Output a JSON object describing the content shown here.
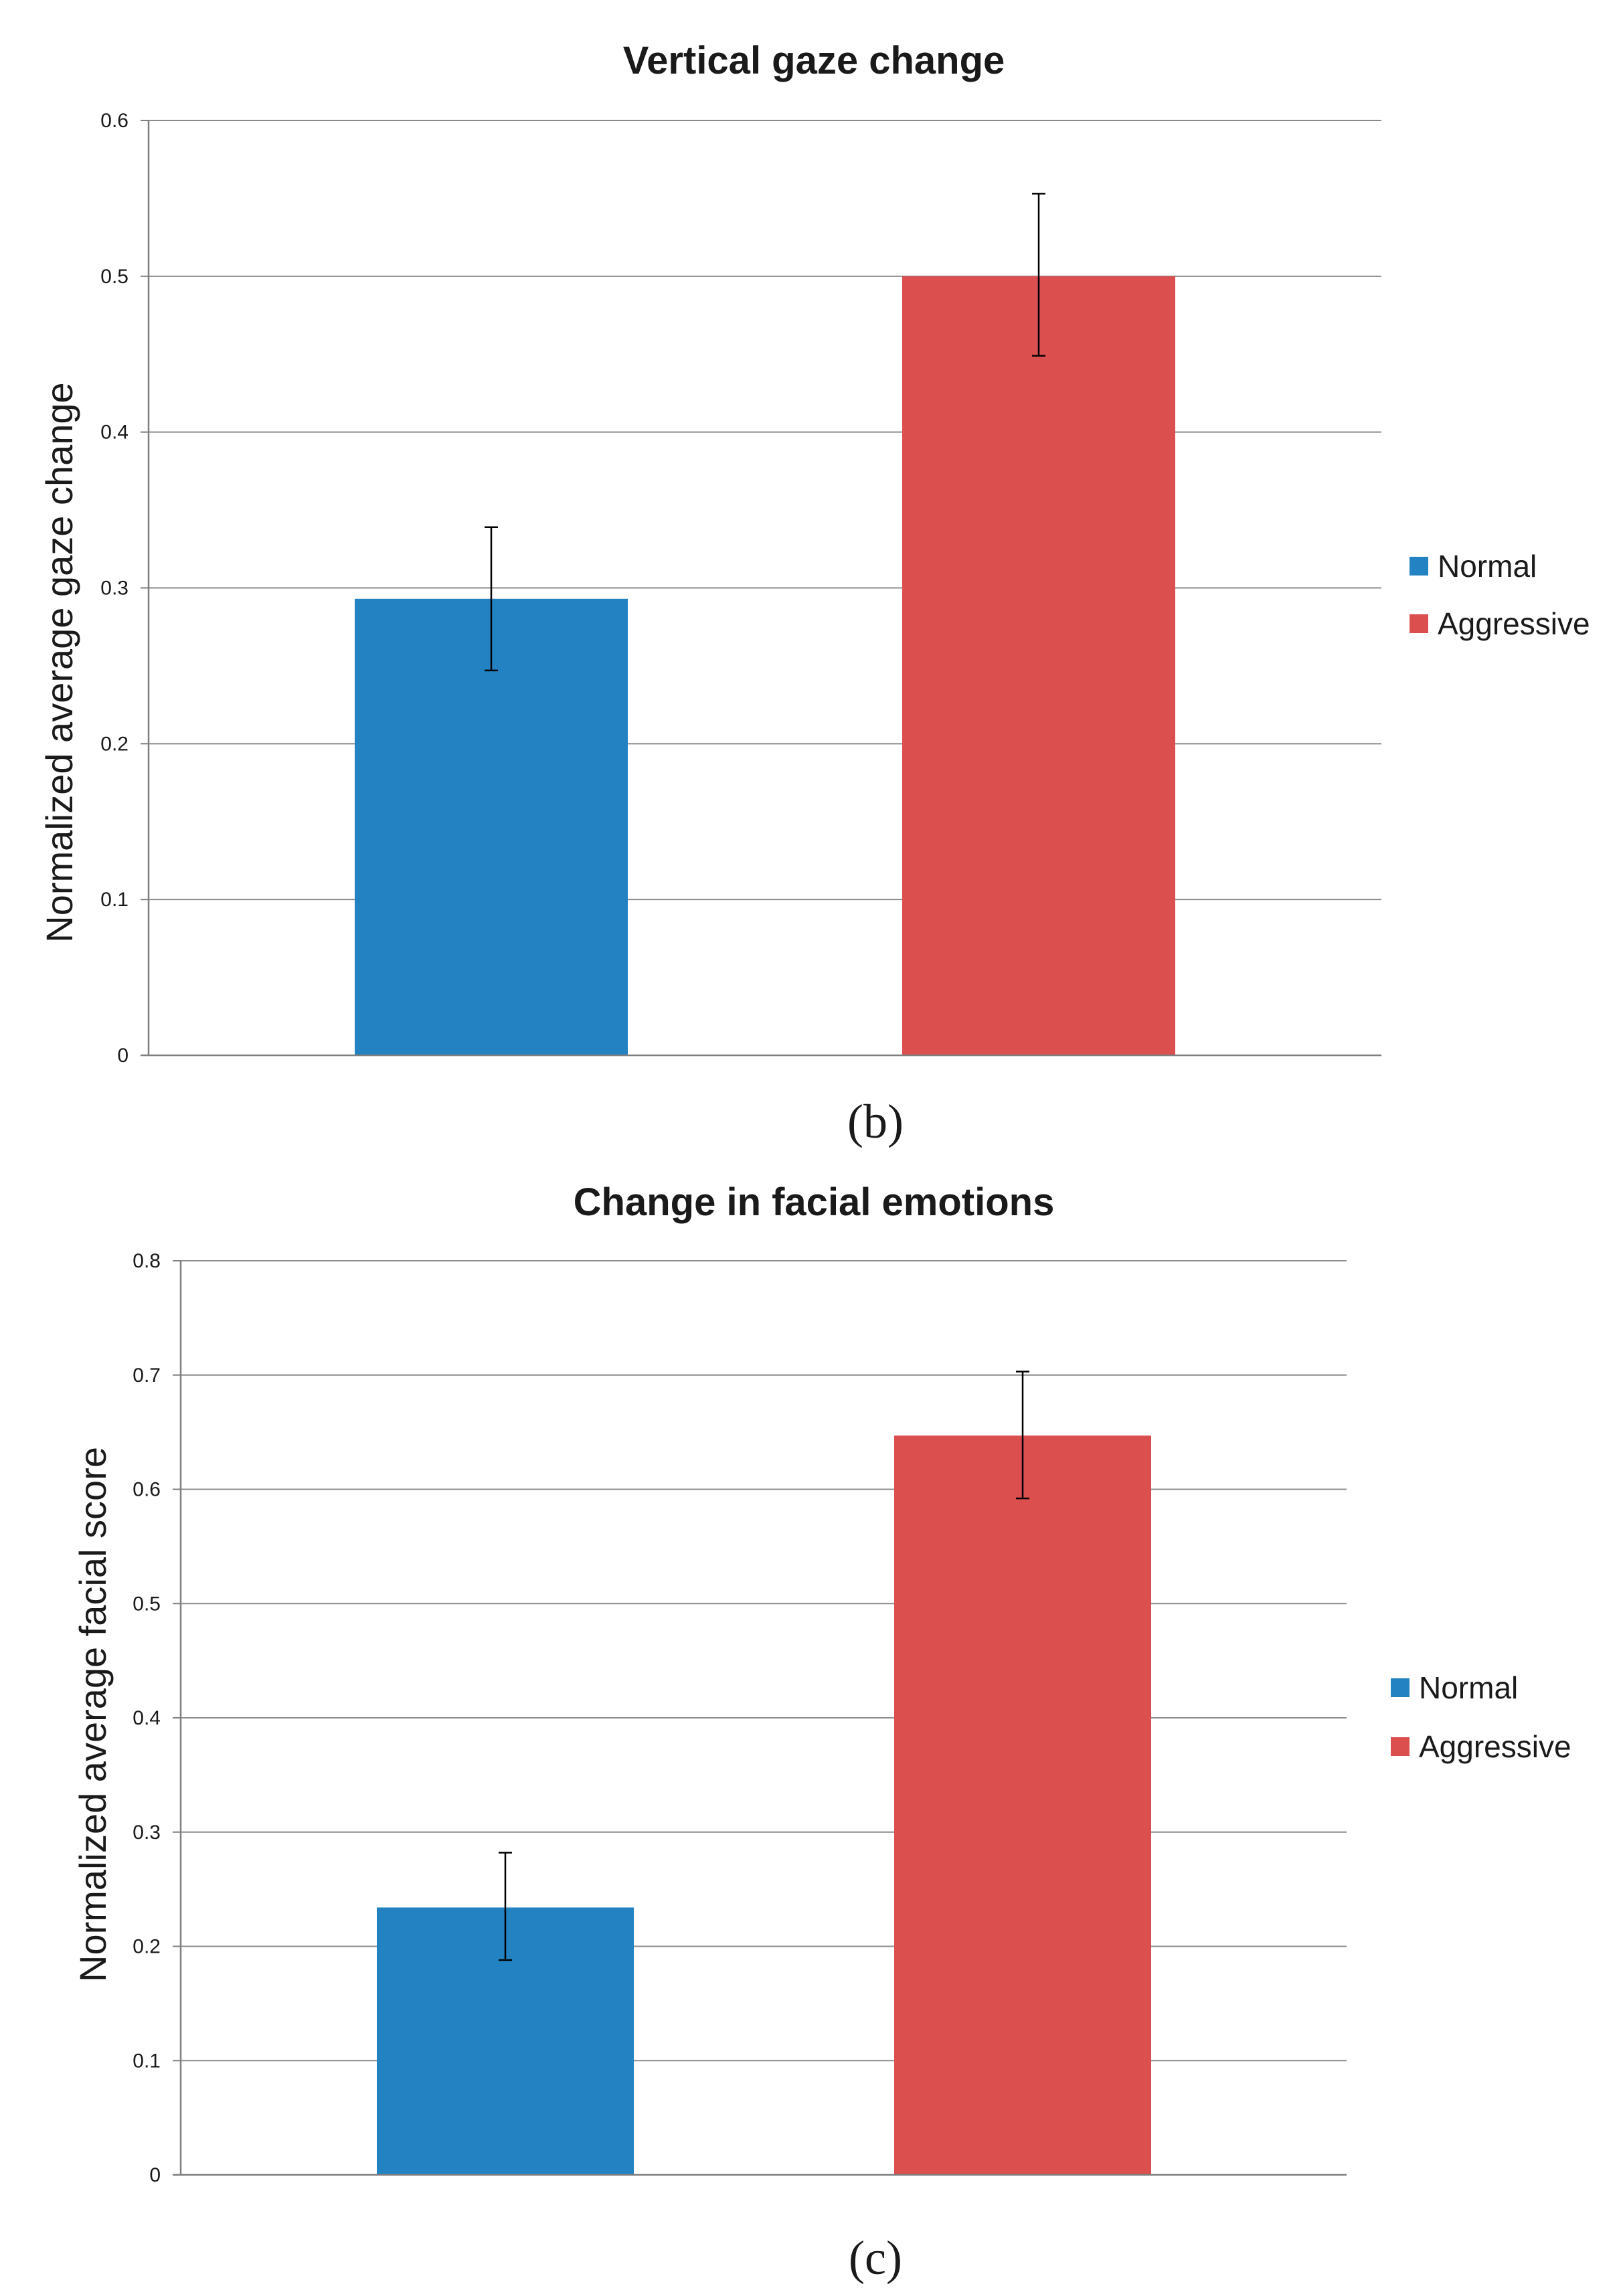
{
  "colors": {
    "normal": "#2382C2",
    "aggressive": "#DC4F4F",
    "gridline": "#8c8c8c",
    "axis": "#7f7f7f",
    "errorbar": "#000000"
  },
  "chart_data": [
    {
      "type": "bar",
      "panel": "b",
      "caption": "(b)",
      "title": "Vertical gaze change",
      "xlabel": "",
      "ylabel": "Normalized average gaze change",
      "ylim": [
        0,
        0.6
      ],
      "yticks": [
        0,
        0.1,
        0.2,
        0.3,
        0.4,
        0.5,
        0.6
      ],
      "ytick_labels": [
        "0",
        "0.1",
        "0.2",
        "0.3",
        "0.4",
        "0.5",
        "0.6"
      ],
      "grid": true,
      "legend_position": "right",
      "series": [
        {
          "name": "Normal",
          "value": 0.293,
          "error_low": 0.247,
          "error_high": 0.339,
          "color": "#2382C2"
        },
        {
          "name": "Aggressive",
          "value": 0.5,
          "error_low": 0.449,
          "error_high": 0.553,
          "color": "#DC4F4F"
        }
      ]
    },
    {
      "type": "bar",
      "panel": "c",
      "caption": "(c)",
      "title": "Change in facial emotions",
      "xlabel": "",
      "ylabel": "Normalized average facial score",
      "ylim": [
        0,
        0.8
      ],
      "yticks": [
        0,
        0.1,
        0.2,
        0.3,
        0.4,
        0.5,
        0.6,
        0.7,
        0.8
      ],
      "ytick_labels": [
        "0",
        "0.1",
        "0.2",
        "0.3",
        "0.4",
        "0.5",
        "0.6",
        "0.7",
        "0.8"
      ],
      "grid": true,
      "legend_position": "right",
      "series": [
        {
          "name": "Normal",
          "value": 0.234,
          "error_low": 0.188,
          "error_high": 0.282,
          "color": "#2382C2"
        },
        {
          "name": "Aggressive",
          "value": 0.647,
          "error_low": 0.592,
          "error_high": 0.703,
          "color": "#DC4F4F"
        }
      ]
    }
  ]
}
